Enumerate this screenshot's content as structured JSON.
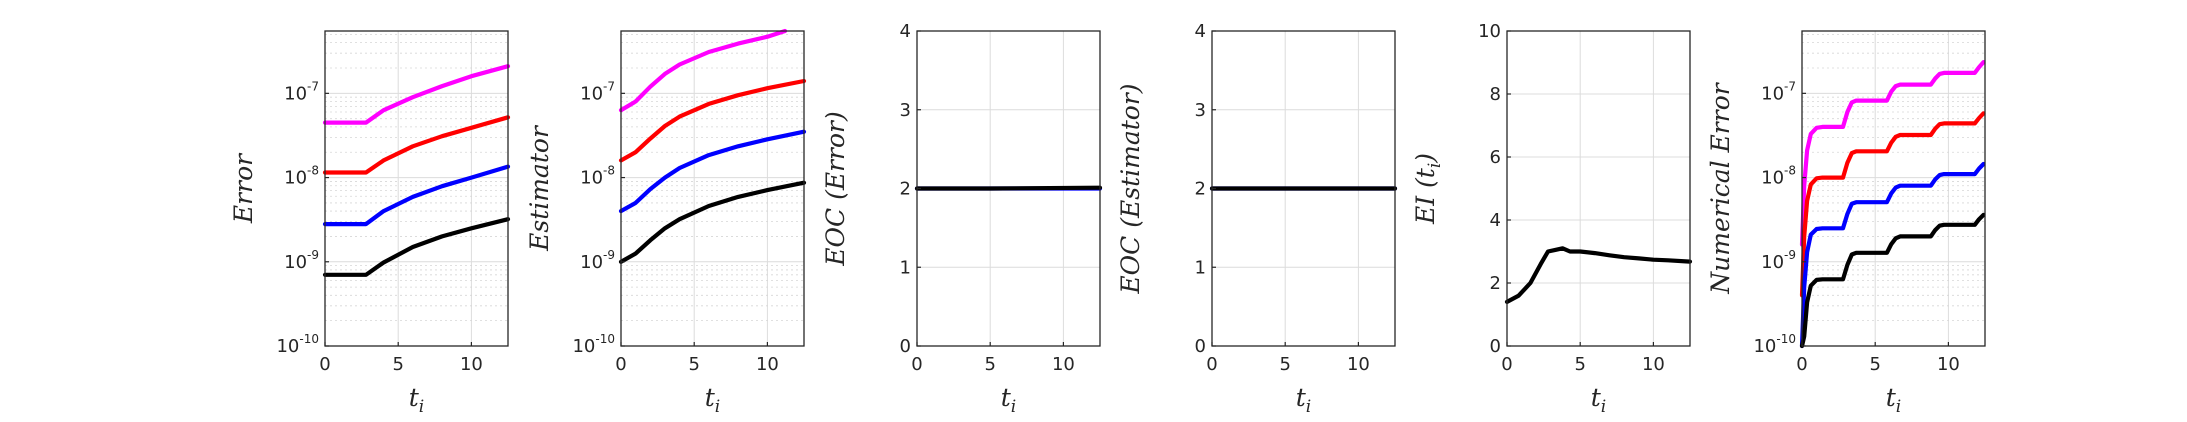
{
  "figure": {
    "colors": {
      "magenta": "#ff00ff",
      "red": "#ff0000",
      "blue": "#0000ff",
      "black": "#000000"
    }
  },
  "chart_data": [
    {
      "type": "line",
      "xlabel": "t",
      "xlabel_sub": "i",
      "ylabel": "Error",
      "xlim": [
        0,
        12.5
      ],
      "xticks": [
        0,
        5,
        10
      ],
      "yscale": "log",
      "ylim": [
        1e-10,
        5.5e-07
      ],
      "yticks": [
        {
          "base": "10",
          "exp": "-10"
        },
        {
          "base": "10",
          "exp": "-9"
        },
        {
          "base": "10",
          "exp": "-8"
        },
        {
          "base": "10",
          "exp": "-7"
        }
      ],
      "grid": true,
      "series": [
        {
          "color": "#ff00ff",
          "x": [
            0,
            1,
            2,
            2.8,
            4,
            6,
            8,
            10,
            12.5
          ],
          "y": [
            4.5e-08,
            4.5e-08,
            4.5e-08,
            4.5e-08,
            6.3e-08,
            9e-08,
            1.22e-07,
            1.6e-07,
            2.1e-07
          ]
        },
        {
          "color": "#ff0000",
          "x": [
            0,
            1,
            2,
            2.8,
            4,
            6,
            8,
            10,
            12.5
          ],
          "y": [
            1.15e-08,
            1.15e-08,
            1.15e-08,
            1.15e-08,
            1.6e-08,
            2.35e-08,
            3.1e-08,
            3.9e-08,
            5.2e-08
          ]
        },
        {
          "color": "#0000ff",
          "x": [
            0,
            1,
            2,
            2.8,
            4,
            6,
            8,
            10,
            12.5
          ],
          "y": [
            2.8e-09,
            2.8e-09,
            2.8e-09,
            2.8e-09,
            4e-09,
            5.9e-09,
            7.9e-09,
            1e-08,
            1.35e-08
          ]
        },
        {
          "color": "#000000",
          "x": [
            0,
            1,
            2,
            2.8,
            4,
            6,
            8,
            10,
            12.5
          ],
          "y": [
            7e-10,
            7e-10,
            7e-10,
            7e-10,
            9.8e-10,
            1.5e-09,
            2e-09,
            2.5e-09,
            3.2e-09
          ]
        }
      ]
    },
    {
      "type": "line",
      "xlabel": "t",
      "xlabel_sub": "i",
      "ylabel": "Estimator",
      "xlim": [
        0,
        12.5
      ],
      "xticks": [
        0,
        5,
        10
      ],
      "yscale": "log",
      "ylim": [
        1e-10,
        5.5e-07
      ],
      "yticks": [
        {
          "base": "10",
          "exp": "-10"
        },
        {
          "base": "10",
          "exp": "-9"
        },
        {
          "base": "10",
          "exp": "-8"
        },
        {
          "base": "10",
          "exp": "-7"
        }
      ],
      "grid": true,
      "series": [
        {
          "color": "#ff00ff",
          "x": [
            0,
            1,
            2,
            3,
            4,
            6,
            8,
            10,
            11.2
          ],
          "y": [
            6.3e-08,
            8e-08,
            1.2e-07,
            1.7e-07,
            2.2e-07,
            3.1e-07,
            3.9e-07,
            4.7e-07,
            5.5e-07
          ]
        },
        {
          "color": "#ff0000",
          "x": [
            0,
            1,
            2,
            3,
            4,
            6,
            8,
            10,
            12.5
          ],
          "y": [
            1.6e-08,
            2e-08,
            2.9e-08,
            4.1e-08,
            5.3e-08,
            7.5e-08,
            9.5e-08,
            1.15e-07,
            1.4e-07
          ]
        },
        {
          "color": "#0000ff",
          "x": [
            0,
            1,
            2,
            3,
            4,
            6,
            8,
            10,
            12.5
          ],
          "y": [
            4e-09,
            5e-09,
            7.3e-09,
            1e-08,
            1.3e-08,
            1.85e-08,
            2.35e-08,
            2.85e-08,
            3.5e-08
          ]
        },
        {
          "color": "#000000",
          "x": [
            0,
            1,
            2,
            3,
            4,
            6,
            8,
            10,
            12.5
          ],
          "y": [
            1e-09,
            1.25e-09,
            1.8e-09,
            2.5e-09,
            3.2e-09,
            4.6e-09,
            5.9e-09,
            7.1e-09,
            8.7e-09
          ]
        }
      ]
    },
    {
      "type": "line",
      "xlabel": "t",
      "xlabel_sub": "i",
      "ylabel": "EOC (Error)",
      "xlim": [
        0,
        12.5
      ],
      "xticks": [
        0,
        5,
        10
      ],
      "yscale": "linear",
      "ylim": [
        0,
        4
      ],
      "yticks": [
        0,
        1,
        2,
        3,
        4
      ],
      "grid": true,
      "series": [
        {
          "color": "#0000ff",
          "x": [
            0,
            12.5
          ],
          "y": [
            2.0,
            2.0
          ]
        },
        {
          "color": "#000000",
          "x": [
            0,
            5,
            12.5
          ],
          "y": [
            2.0,
            2.0,
            2.01
          ]
        }
      ]
    },
    {
      "type": "line",
      "xlabel": "t",
      "xlabel_sub": "i",
      "ylabel": "EOC (Estimator)",
      "xlim": [
        0,
        12.5
      ],
      "xticks": [
        0,
        5,
        10
      ],
      "yscale": "linear",
      "ylim": [
        0,
        4
      ],
      "yticks": [
        0,
        1,
        2,
        3,
        4
      ],
      "grid": true,
      "series": [
        {
          "color": "#0000ff",
          "x": [
            0,
            12.5
          ],
          "y": [
            2.0,
            2.0
          ]
        },
        {
          "color": "#000000",
          "x": [
            0,
            12.5
          ],
          "y": [
            2.0,
            2.0
          ]
        }
      ]
    },
    {
      "type": "line",
      "xlabel": "t",
      "xlabel_sub": "i",
      "ylabel": "EI (t",
      "ylabel_sub": "i",
      "ylabel_tail": ")",
      "xlim": [
        0,
        12.5
      ],
      "xticks": [
        0,
        5,
        10
      ],
      "yscale": "linear",
      "ylim": [
        0,
        10
      ],
      "yticks": [
        0,
        2,
        4,
        6,
        8,
        10
      ],
      "grid": true,
      "series": [
        {
          "color": "#000000",
          "x": [
            0,
            0.8,
            1.6,
            2.3,
            2.8,
            3.3,
            3.8,
            4.3,
            5,
            6,
            7,
            8,
            9,
            10,
            11,
            12.5
          ],
          "y": [
            1.4,
            1.6,
            2.0,
            2.6,
            3.0,
            3.05,
            3.1,
            3.0,
            3.0,
            2.95,
            2.88,
            2.82,
            2.78,
            2.74,
            2.72,
            2.68
          ]
        }
      ]
    },
    {
      "type": "line",
      "xlabel": "t",
      "xlabel_sub": "i",
      "ylabel": "Numerical Error",
      "xlim": [
        0,
        12.5
      ],
      "xticks": [
        0,
        5,
        10
      ],
      "yscale": "log",
      "ylim": [
        1e-10,
        5.5e-07
      ],
      "yticks": [
        {
          "base": "10",
          "exp": "-10"
        },
        {
          "base": "10",
          "exp": "-9"
        },
        {
          "base": "10",
          "exp": "-8"
        },
        {
          "base": "10",
          "exp": "-7"
        }
      ],
      "grid": true,
      "series": [
        {
          "color": "#ff00ff",
          "x": [
            0,
            0.15,
            0.35,
            0.6,
            1,
            1.4,
            2.8,
            3.1,
            3.4,
            3.7,
            5.8,
            6.1,
            6.4,
            6.7,
            8.8,
            9.1,
            9.4,
            9.7,
            11.8,
            12.1,
            12.4
          ],
          "y": [
            1.6e-09,
            8e-09,
            2.1e-08,
            3.3e-08,
            3.9e-08,
            4e-08,
            4e-08,
            6e-08,
            7.8e-08,
            8.2e-08,
            8.2e-08,
            1.05e-07,
            1.22e-07,
            1.27e-07,
            1.27e-07,
            1.5e-07,
            1.7e-07,
            1.75e-07,
            1.75e-07,
            2.05e-07,
            2.35e-07
          ]
        },
        {
          "color": "#ff0000",
          "x": [
            0,
            0.15,
            0.35,
            0.6,
            1,
            1.4,
            2.8,
            3.1,
            3.4,
            3.7,
            5.8,
            6.1,
            6.4,
            6.7,
            8.8,
            9.1,
            9.4,
            9.7,
            11.8,
            12.1,
            12.4
          ],
          "y": [
            4e-10,
            2e-09,
            5.3e-09,
            8.3e-09,
            9.8e-09,
            1e-08,
            1e-08,
            1.5e-08,
            1.95e-08,
            2.05e-08,
            2.05e-08,
            2.6e-08,
            3.05e-08,
            3.2e-08,
            3.2e-08,
            3.8e-08,
            4.3e-08,
            4.4e-08,
            4.4e-08,
            5.1e-08,
            5.8e-08
          ]
        },
        {
          "color": "#0000ff",
          "x": [
            0,
            0.15,
            0.35,
            0.6,
            1,
            1.4,
            2.8,
            3.1,
            3.4,
            3.7,
            5.8,
            6.1,
            6.4,
            6.7,
            8.8,
            9.1,
            9.4,
            9.7,
            11.8,
            12.1,
            12.4
          ],
          "y": [
            1e-10,
            5e-10,
            1.3e-09,
            2.1e-09,
            2.45e-09,
            2.5e-09,
            2.5e-09,
            3.7e-09,
            4.9e-09,
            5.1e-09,
            5.1e-09,
            6.5e-09,
            7.6e-09,
            8e-09,
            8e-09,
            9.5e-09,
            1.07e-08,
            1.1e-08,
            1.1e-08,
            1.28e-08,
            1.45e-08
          ]
        },
        {
          "color": "#000000",
          "x": [
            0,
            0.15,
            0.35,
            0.6,
            1,
            1.4,
            2.8,
            3.1,
            3.4,
            3.7,
            5.8,
            6.1,
            6.4,
            6.7,
            8.8,
            9.1,
            9.4,
            9.7,
            11.8,
            12.1,
            12.4
          ],
          "y": [
            1e-10,
            1.3e-10,
            3.3e-10,
            5.2e-10,
            6.1e-10,
            6.2e-10,
            6.2e-10,
            9.2e-10,
            1.22e-09,
            1.28e-09,
            1.28e-09,
            1.62e-09,
            1.9e-09,
            2e-09,
            2e-09,
            2.38e-09,
            2.68e-09,
            2.75e-09,
            2.75e-09,
            3.2e-09,
            3.6e-09
          ]
        }
      ]
    }
  ]
}
